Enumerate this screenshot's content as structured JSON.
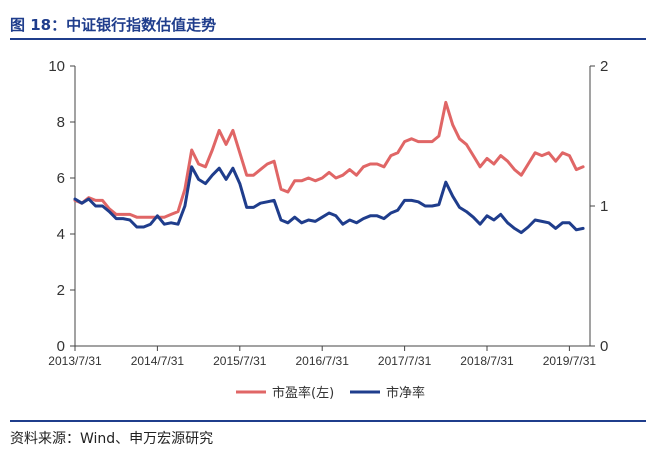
{
  "header": {
    "title": "图 18：中证银行指数估值走势"
  },
  "footer": {
    "source": "资料来源：Wind、申万宏源研究"
  },
  "colors": {
    "pe": "#e06666",
    "pb": "#1f3d8c",
    "accent": "#1f3d8c"
  },
  "chart_data": {
    "type": "line",
    "title": "图 18：中证银行指数估值走势",
    "x_ticks": [
      "2013/7/31",
      "2014/7/31",
      "2015/7/31",
      "2016/7/31",
      "2017/7/31",
      "2018/7/31",
      "2019/7/31"
    ],
    "y_left": {
      "lim": [
        0,
        10
      ],
      "ticks": [
        "0",
        "2",
        "4",
        "6",
        "8",
        "10"
      ]
    },
    "y_right": {
      "lim": [
        0,
        2
      ],
      "ticks": [
        "0",
        "1",
        "2"
      ]
    },
    "legend": {
      "position": "bottom"
    },
    "grid": false,
    "series": [
      {
        "name": "市盈率(左)",
        "axis": "left",
        "color": "#e06666",
        "x": [
          "2013-07",
          "2013-08",
          "2013-09",
          "2013-10",
          "2013-11",
          "2013-12",
          "2014-01",
          "2014-02",
          "2014-03",
          "2014-04",
          "2014-05",
          "2014-06",
          "2014-07",
          "2014-08",
          "2014-09",
          "2014-10",
          "2014-11",
          "2014-12",
          "2015-01",
          "2015-02",
          "2015-03",
          "2015-04",
          "2015-05",
          "2015-06",
          "2015-07",
          "2015-08",
          "2015-09",
          "2015-10",
          "2015-11",
          "2015-12",
          "2016-01",
          "2016-02",
          "2016-03",
          "2016-04",
          "2016-05",
          "2016-06",
          "2016-07",
          "2016-08",
          "2016-09",
          "2016-10",
          "2016-11",
          "2016-12",
          "2017-01",
          "2017-02",
          "2017-03",
          "2017-04",
          "2017-05",
          "2017-06",
          "2017-07",
          "2017-08",
          "2017-09",
          "2017-10",
          "2017-11",
          "2017-12",
          "2018-01",
          "2018-02",
          "2018-03",
          "2018-04",
          "2018-05",
          "2018-06",
          "2018-07",
          "2018-08",
          "2018-09",
          "2018-10",
          "2018-11",
          "2018-12",
          "2019-01",
          "2019-02",
          "2019-03",
          "2019-04",
          "2019-05",
          "2019-06",
          "2019-07",
          "2019-08",
          "2019-09"
        ],
        "values": [
          5.2,
          5.1,
          5.3,
          5.2,
          5.2,
          4.9,
          4.7,
          4.7,
          4.7,
          4.6,
          4.6,
          4.6,
          4.6,
          4.6,
          4.7,
          4.8,
          5.6,
          7.0,
          6.5,
          6.4,
          7.0,
          7.7,
          7.2,
          7.7,
          6.9,
          6.1,
          6.1,
          6.3,
          6.5,
          6.6,
          5.6,
          5.5,
          5.9,
          5.9,
          6.0,
          5.9,
          6.0,
          6.2,
          6.0,
          6.1,
          6.3,
          6.1,
          6.4,
          6.5,
          6.5,
          6.4,
          6.8,
          6.9,
          7.3,
          7.4,
          7.3,
          7.3,
          7.3,
          7.5,
          8.7,
          7.9,
          7.4,
          7.2,
          6.8,
          6.4,
          6.7,
          6.5,
          6.8,
          6.6,
          6.3,
          6.1,
          6.5,
          6.9,
          6.8,
          6.9,
          6.6,
          6.9,
          6.8,
          6.3,
          6.4
        ]
      },
      {
        "name": "市净率",
        "axis": "right",
        "color": "#1f3d8c",
        "x": [
          "2013-07",
          "2013-08",
          "2013-09",
          "2013-10",
          "2013-11",
          "2013-12",
          "2014-01",
          "2014-02",
          "2014-03",
          "2014-04",
          "2014-05",
          "2014-06",
          "2014-07",
          "2014-08",
          "2014-09",
          "2014-10",
          "2014-11",
          "2014-12",
          "2015-01",
          "2015-02",
          "2015-03",
          "2015-04",
          "2015-05",
          "2015-06",
          "2015-07",
          "2015-08",
          "2015-09",
          "2015-10",
          "2015-11",
          "2015-12",
          "2016-01",
          "2016-02",
          "2016-03",
          "2016-04",
          "2016-05",
          "2016-06",
          "2016-07",
          "2016-08",
          "2016-09",
          "2016-10",
          "2016-11",
          "2016-12",
          "2017-01",
          "2017-02",
          "2017-03",
          "2017-04",
          "2017-05",
          "2017-06",
          "2017-07",
          "2017-08",
          "2017-09",
          "2017-10",
          "2017-11",
          "2017-12",
          "2018-01",
          "2018-02",
          "2018-03",
          "2018-04",
          "2018-05",
          "2018-06",
          "2018-07",
          "2018-08",
          "2018-09",
          "2018-10",
          "2018-11",
          "2018-12",
          "2019-01",
          "2019-02",
          "2019-03",
          "2019-04",
          "2019-05",
          "2019-06",
          "2019-07",
          "2019-08",
          "2019-09"
        ],
        "values": [
          1.05,
          1.02,
          1.05,
          1.0,
          1.0,
          0.96,
          0.91,
          0.91,
          0.9,
          0.85,
          0.85,
          0.87,
          0.93,
          0.87,
          0.88,
          0.87,
          1.0,
          1.28,
          1.19,
          1.16,
          1.22,
          1.27,
          1.19,
          1.27,
          1.16,
          0.99,
          0.99,
          1.02,
          1.03,
          1.04,
          0.9,
          0.88,
          0.92,
          0.88,
          0.9,
          0.89,
          0.92,
          0.95,
          0.93,
          0.87,
          0.9,
          0.88,
          0.91,
          0.93,
          0.93,
          0.91,
          0.95,
          0.97,
          1.04,
          1.04,
          1.03,
          1.0,
          1.0,
          1.01,
          1.17,
          1.07,
          0.99,
          0.96,
          0.92,
          0.87,
          0.93,
          0.9,
          0.94,
          0.88,
          0.84,
          0.81,
          0.85,
          0.9,
          0.89,
          0.88,
          0.84,
          0.88,
          0.88,
          0.83,
          0.84
        ]
      }
    ]
  }
}
